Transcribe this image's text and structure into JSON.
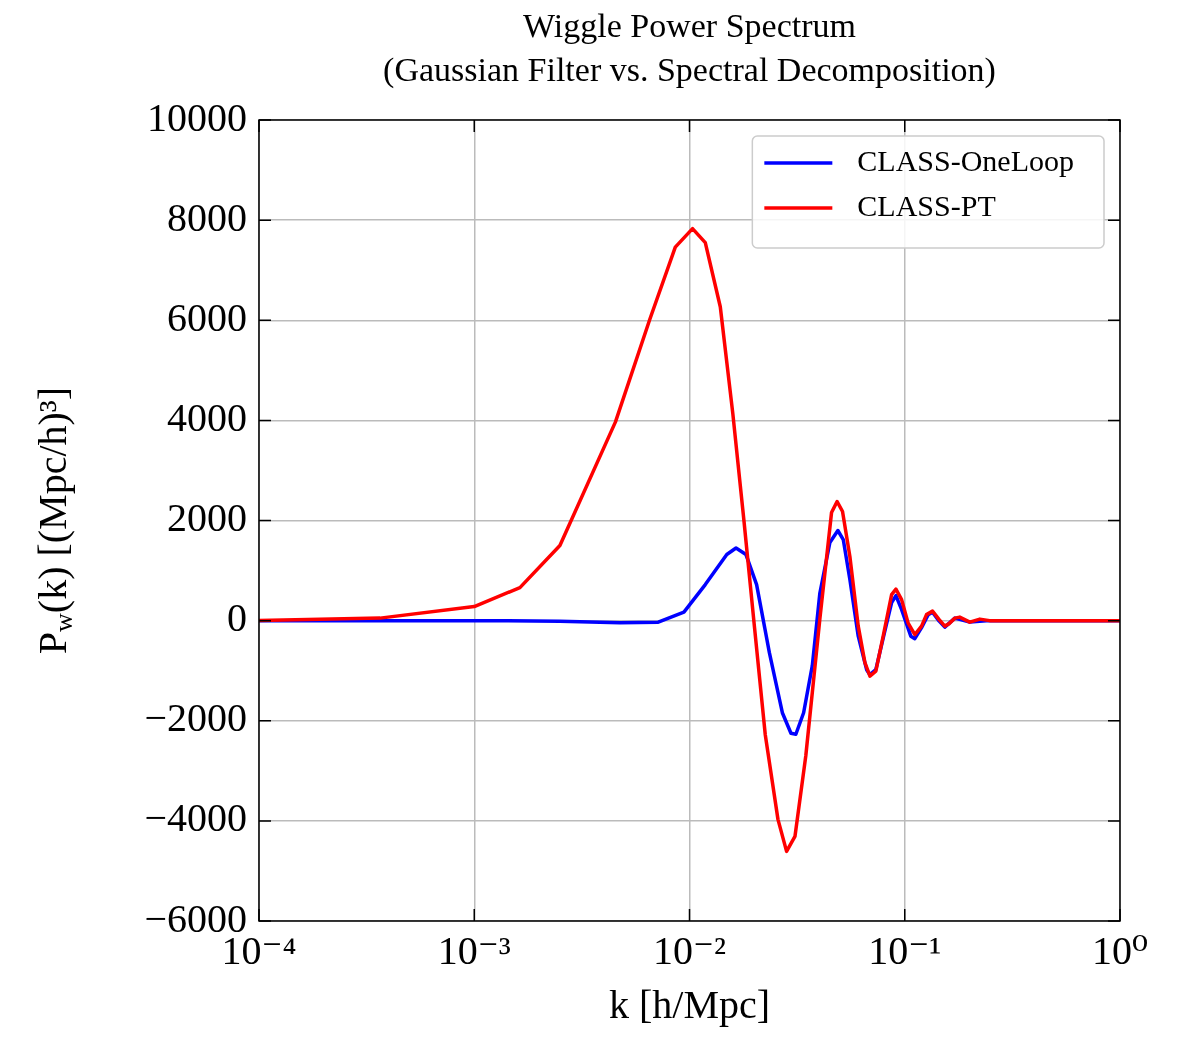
{
  "chart_data": {
    "type": "line",
    "title": "Wiggle Power Spectrum",
    "subtitle": "(Gaussian Filter vs. Spectral Decomposition)",
    "xlabel": "k [h/Mpc]",
    "ylabel": "P$_{w}$(k) [(Mpc/h)³]",
    "log": "x",
    "grid": true,
    "legend": "top right",
    "line_style": "solid",
    "marker": "none",
    "xlim": [
      0.0001,
      1
    ],
    "xticks": [
      {
        "value": 0.0001,
        "label": "10⁻⁴"
      },
      {
        "value": 0.001,
        "label": "10⁻³"
      },
      {
        "value": 0.01,
        "label": "10⁻²"
      },
      {
        "value": 0.1,
        "label": "10⁻¹"
      },
      {
        "value": 1,
        "label": "10⁰"
      }
    ],
    "ylim": [
      -6000,
      10000
    ],
    "yticks": [
      {
        "value": -6000,
        "label": "−6000"
      },
      {
        "value": -4000,
        "label": "−4000"
      },
      {
        "value": -2000,
        "label": "−2000"
      },
      0,
      2000,
      4000,
      6000,
      8000,
      10000
    ],
    "series": [
      {
        "name": "CLASS-OneLoop",
        "color": "#0000ff",
        "x": [
          0.0001,
          0.001,
          0.0025,
          0.00475,
          0.00716,
          0.00942,
          0.01184,
          0.0149,
          0.01645,
          0.0183,
          0.0205,
          0.0235,
          0.027,
          0.0296,
          0.0312,
          0.0339,
          0.0372,
          0.0403,
          0.0449,
          0.0489,
          0.0518,
          0.0556,
          0.0608,
          0.0665,
          0.0689,
          0.0734,
          0.0805,
          0.0869,
          0.091,
          0.0967,
          0.1067,
          0.1114,
          0.1197,
          0.1285,
          0.1346,
          0.1445,
          0.1535,
          0.171,
          0.2005,
          0.248,
          1
        ],
        "values": [
          0,
          0,
          -10,
          -40,
          -30,
          170,
          720,
          1320,
          1450,
          1320,
          720,
          -640,
          -1840,
          -2250,
          -2270,
          -1840,
          -900,
          540,
          1560,
          1800,
          1620,
          820,
          -310,
          -980,
          -1080,
          -980,
          -240,
          360,
          500,
          220,
          -310,
          -360,
          -140,
          120,
          170,
          -10,
          -130,
          50,
          -30,
          0,
          0
        ]
      },
      {
        "name": "CLASS-PT",
        "color": "#ff0000",
        "x": [
          0.0001,
          0.000365,
          0.001,
          0.00163,
          0.0025,
          0.00453,
          0.00653,
          0.00859,
          0.01033,
          0.01184,
          0.0139,
          0.0159,
          0.0179,
          0.02005,
          0.02249,
          0.02576,
          0.02825,
          0.0309,
          0.0347,
          0.0403,
          0.0457,
          0.0485,
          0.0514,
          0.0556,
          0.0608,
          0.0653,
          0.0689,
          0.0734,
          0.0794,
          0.0869,
          0.091,
          0.0967,
          0.1037,
          0.1114,
          0.1197,
          0.1262,
          0.1346,
          0.1445,
          0.1535,
          0.1607,
          0.171,
          0.18,
          0.2005,
          0.2233,
          0.248,
          1
        ],
        "values": [
          0,
          50,
          280,
          660,
          1500,
          3970,
          6010,
          7460,
          7830,
          7550,
          6270,
          4130,
          2000,
          -140,
          -2280,
          -3970,
          -4610,
          -4310,
          -2700,
          20,
          2160,
          2380,
          2180,
          1280,
          -110,
          -840,
          -1110,
          -1010,
          -310,
          520,
          630,
          420,
          -50,
          -280,
          -110,
          120,
          190,
          20,
          -110,
          -60,
          50,
          70,
          -30,
          30,
          0,
          0
        ]
      }
    ]
  }
}
